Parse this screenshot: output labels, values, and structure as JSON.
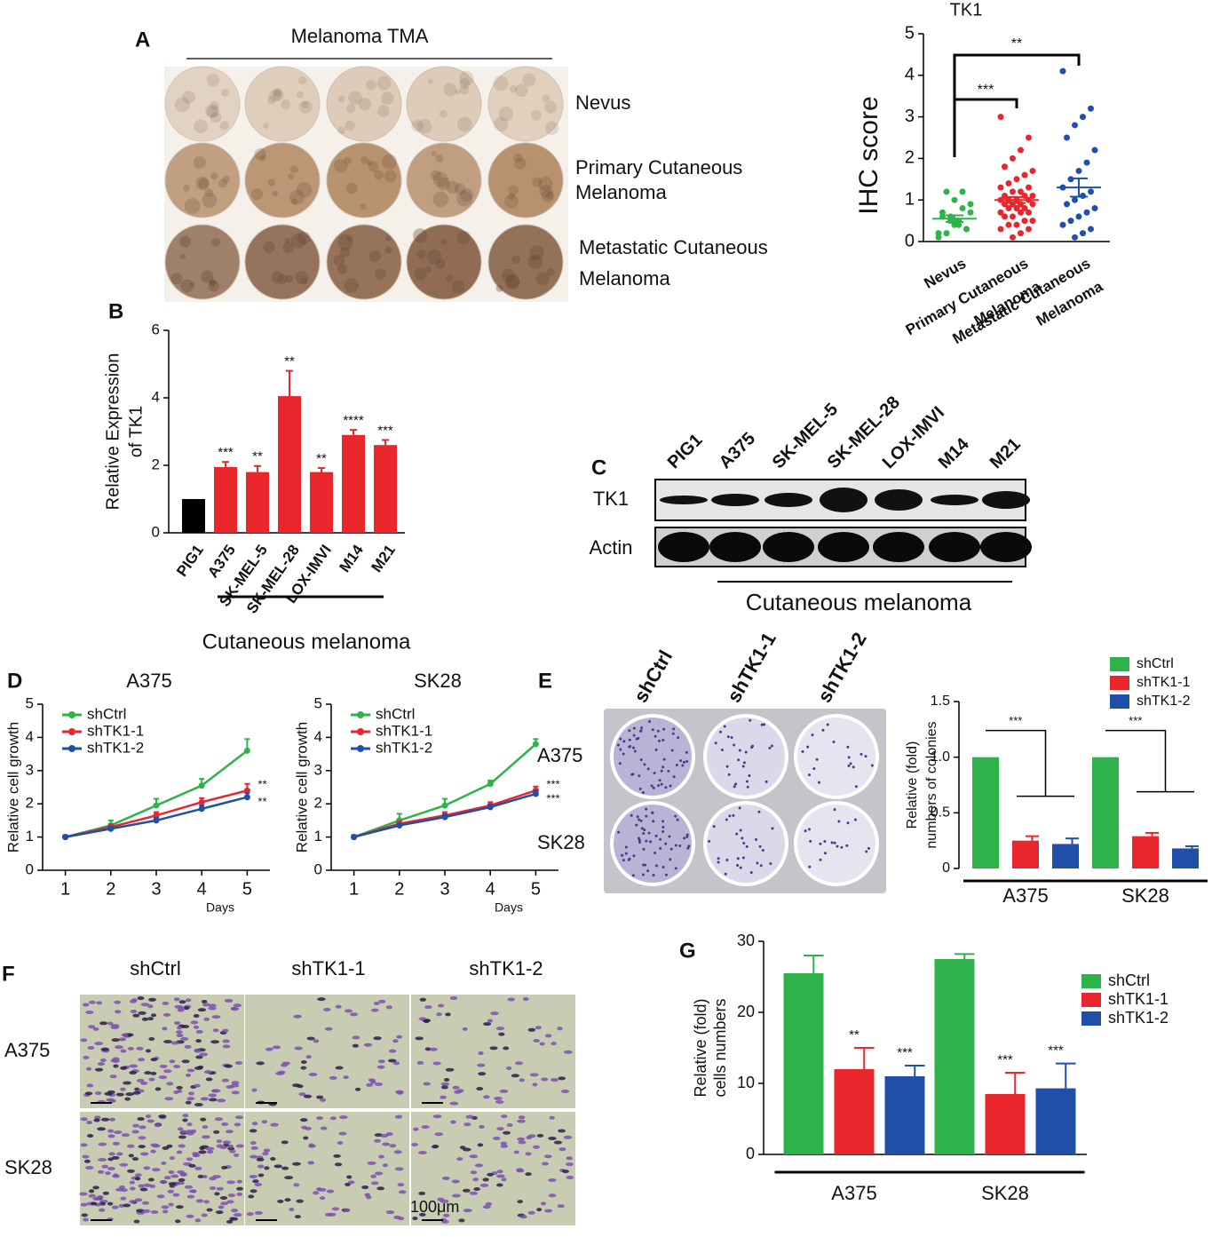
{
  "panel_a": {
    "label": "A",
    "title": "Melanoma TMA",
    "rows": [
      [
        "Nevus"
      ],
      [
        "Primary Cutaneous",
        "Melanoma"
      ],
      [
        "Metastatic Cutaneous",
        "Melanoma"
      ]
    ]
  },
  "panel_c": {
    "label": "C",
    "lanes": [
      "PIG1",
      "A375",
      "SK-MEL-5",
      "SK-MEL-28",
      "LOX-IMVI",
      "M14",
      "M21"
    ],
    "rows": [
      "TK1",
      "Actin"
    ],
    "group_label": "Cutaneous melanoma"
  },
  "panel_e": {
    "label": "E",
    "columns": [
      "shCtrl",
      "shTK1-1",
      "shTK1-2"
    ],
    "rows": [
      "A375",
      "SK28"
    ]
  },
  "panel_f": {
    "label": "F",
    "columns": [
      "shCtrl",
      "shTK1-1",
      "shTK1-2"
    ],
    "rows": [
      "A375",
      "SK28"
    ],
    "scale": "100μm"
  },
  "chart_data": [
    {
      "type": "dot",
      "title": "TK1",
      "ylabel": "IHC score",
      "categories": [
        [
          "Nevus"
        ],
        [
          "Primary Cutaneous",
          "Melanoma"
        ],
        [
          "Metastatic Cutaneous",
          "Melanoma"
        ]
      ],
      "colors": [
        "#2db34a",
        "#e8262b",
        "#1f4fa8"
      ],
      "values": [
        [
          0.2,
          0.3,
          0.4,
          0.5,
          0.6,
          0.7,
          0.8,
          1.0,
          1.2,
          0.1,
          0.3,
          0.5,
          0.6,
          0.7,
          0.9,
          1.2,
          0.4,
          0.2
        ],
        [
          3.0,
          2.5,
          2.2,
          2.0,
          1.8,
          1.7,
          1.6,
          1.5,
          1.4,
          1.3,
          1.3,
          1.2,
          1.2,
          1.1,
          1.1,
          1.1,
          1.0,
          1.0,
          1.0,
          1.0,
          0.9,
          0.9,
          0.9,
          0.9,
          0.8,
          0.8,
          0.8,
          0.7,
          0.7,
          0.7,
          0.6,
          0.6,
          0.5,
          0.5,
          0.4,
          0.4,
          0.3,
          0.3,
          0.2,
          0.1
        ],
        [
          4.1,
          3.2,
          3.0,
          2.8,
          2.5,
          2.2,
          1.9,
          1.7,
          1.5,
          1.3,
          1.2,
          1.1,
          1.0,
          0.9,
          0.8,
          0.7,
          0.6,
          0.5,
          0.4,
          0.3,
          0.2,
          0.1
        ]
      ],
      "means": [
        0.55,
        1.0,
        1.3
      ],
      "sems": [
        0.08,
        0.07,
        0.22
      ],
      "annotations": [
        "***",
        "**"
      ],
      "ylim": [
        0,
        5
      ],
      "yticks": [
        0,
        1,
        2,
        3,
        4,
        5
      ]
    },
    {
      "type": "bar",
      "panel_label": "B",
      "ylabel": [
        "Relative Expression",
        "of TK1"
      ],
      "categories": [
        "PIG1",
        "A375",
        "SK-MEL-5",
        "SK-MEL-28",
        "LOX-IMVI",
        "M14",
        "M21"
      ],
      "values": [
        1,
        1.95,
        1.8,
        4.05,
        1.8,
        2.9,
        2.6
      ],
      "errors": [
        0,
        0.15,
        0.18,
        0.75,
        0.12,
        0.15,
        0.15
      ],
      "colors": [
        "#000000",
        "#e8262b",
        "#e8262b",
        "#e8262b",
        "#e8262b",
        "#e8262b",
        "#e8262b"
      ],
      "annotations": [
        null,
        "***",
        "**",
        "**",
        "**",
        "****",
        "***"
      ],
      "group_label": "Cutaneous melanoma",
      "ylim": [
        0,
        6
      ],
      "yticks": [
        0,
        2,
        4,
        6
      ]
    },
    {
      "type": "line",
      "panel_label": "D",
      "title": "A375",
      "xlabel": "Days",
      "ylabel": "Relative cell growth",
      "x": [
        1,
        2,
        3,
        4,
        5
      ],
      "series": [
        {
          "name": "shCtrl",
          "color": "#2db34a",
          "values": [
            1,
            1.35,
            1.95,
            2.55,
            3.6
          ],
          "errors": [
            0.05,
            0.15,
            0.2,
            0.2,
            0.35
          ]
        },
        {
          "name": "shTK1-1",
          "color": "#e8262b",
          "values": [
            1,
            1.3,
            1.65,
            2.05,
            2.4
          ],
          "errors": [
            0.05,
            0.08,
            0.1,
            0.12,
            0.2
          ]
        },
        {
          "name": "shTK1-2",
          "color": "#1f4fa8",
          "values": [
            1,
            1.25,
            1.5,
            1.85,
            2.2
          ],
          "errors": [
            0.05,
            0.06,
            0.08,
            0.1,
            0.12
          ]
        }
      ],
      "annotations": [
        "**",
        "**"
      ],
      "xlim": [
        0.5,
        5.5
      ],
      "xticks": [
        1,
        2,
        3,
        4,
        5
      ],
      "ylim": [
        0,
        5
      ],
      "yticks": [
        0,
        1,
        2,
        3,
        4,
        5
      ]
    },
    {
      "type": "line",
      "title": "SK28",
      "xlabel": "Days",
      "ylabel": "Relative cell growth",
      "x": [
        1,
        2,
        3,
        4,
        5
      ],
      "series": [
        {
          "name": "shCtrl",
          "color": "#2db34a",
          "values": [
            1,
            1.5,
            1.95,
            2.6,
            3.8
          ],
          "errors": [
            0.05,
            0.2,
            0.2,
            0.1,
            0.15
          ]
        },
        {
          "name": "shTK1-1",
          "color": "#e8262b",
          "values": [
            1,
            1.4,
            1.65,
            1.95,
            2.4
          ],
          "errors": [
            0.05,
            0.08,
            0.1,
            0.1,
            0.12
          ]
        },
        {
          "name": "shTK1-2",
          "color": "#1f4fa8",
          "values": [
            1,
            1.35,
            1.6,
            1.9,
            2.3
          ],
          "errors": [
            0.05,
            0.06,
            0.08,
            0.08,
            0.1
          ]
        }
      ],
      "annotations": [
        "***",
        "***"
      ],
      "xlim": [
        0.5,
        5.5
      ],
      "xticks": [
        1,
        2,
        3,
        4,
        5
      ],
      "ylim": [
        0,
        5
      ],
      "yticks": [
        0,
        1,
        2,
        3,
        4,
        5
      ]
    },
    {
      "type": "grouped_bar",
      "ylabel": [
        "Relative (fold)",
        "numbers of colonies"
      ],
      "categories": [
        "A375",
        "SK28"
      ],
      "series": [
        {
          "name": "shCtrl",
          "color": "#2db34a",
          "values": [
            1,
            1
          ],
          "errors": [
            0,
            0
          ]
        },
        {
          "name": "shTK1-1",
          "color": "#e8262b",
          "values": [
            0.25,
            0.29
          ],
          "errors": [
            0.04,
            0.03
          ]
        },
        {
          "name": "shTK1-2",
          "color": "#1f4fa8",
          "values": [
            0.22,
            0.18
          ],
          "errors": [
            0.05,
            0.02
          ]
        }
      ],
      "annotations": [
        "***",
        "***"
      ],
      "ylim": [
        0,
        1.5
      ],
      "yticks": [
        0,
        0.5,
        {
          "value": 1,
          "label": "1.0"
        },
        1.5
      ]
    },
    {
      "type": "grouped_bar",
      "panel_label": "G",
      "ylabel": [
        "Relative (fold)",
        "cells numbers"
      ],
      "categories": [
        "A375",
        "SK28"
      ],
      "series": [
        {
          "name": "shCtrl",
          "color": "#2db34a",
          "values": [
            25.5,
            27.5
          ],
          "errors": [
            2.5,
            0.7
          ]
        },
        {
          "name": "shTK1-1",
          "color": "#e8262b",
          "values": [
            12,
            8.5
          ],
          "errors": [
            3,
            3
          ],
          "annotations": [
            "**",
            "***"
          ]
        },
        {
          "name": "shTK1-2",
          "color": "#1f4fa8",
          "values": [
            11,
            9.3
          ],
          "errors": [
            1.5,
            3.5
          ],
          "annotations": [
            "***",
            "***"
          ]
        }
      ],
      "ylim": [
        0,
        30
      ],
      "yticks": [
        0,
        10,
        20,
        30
      ]
    }
  ]
}
